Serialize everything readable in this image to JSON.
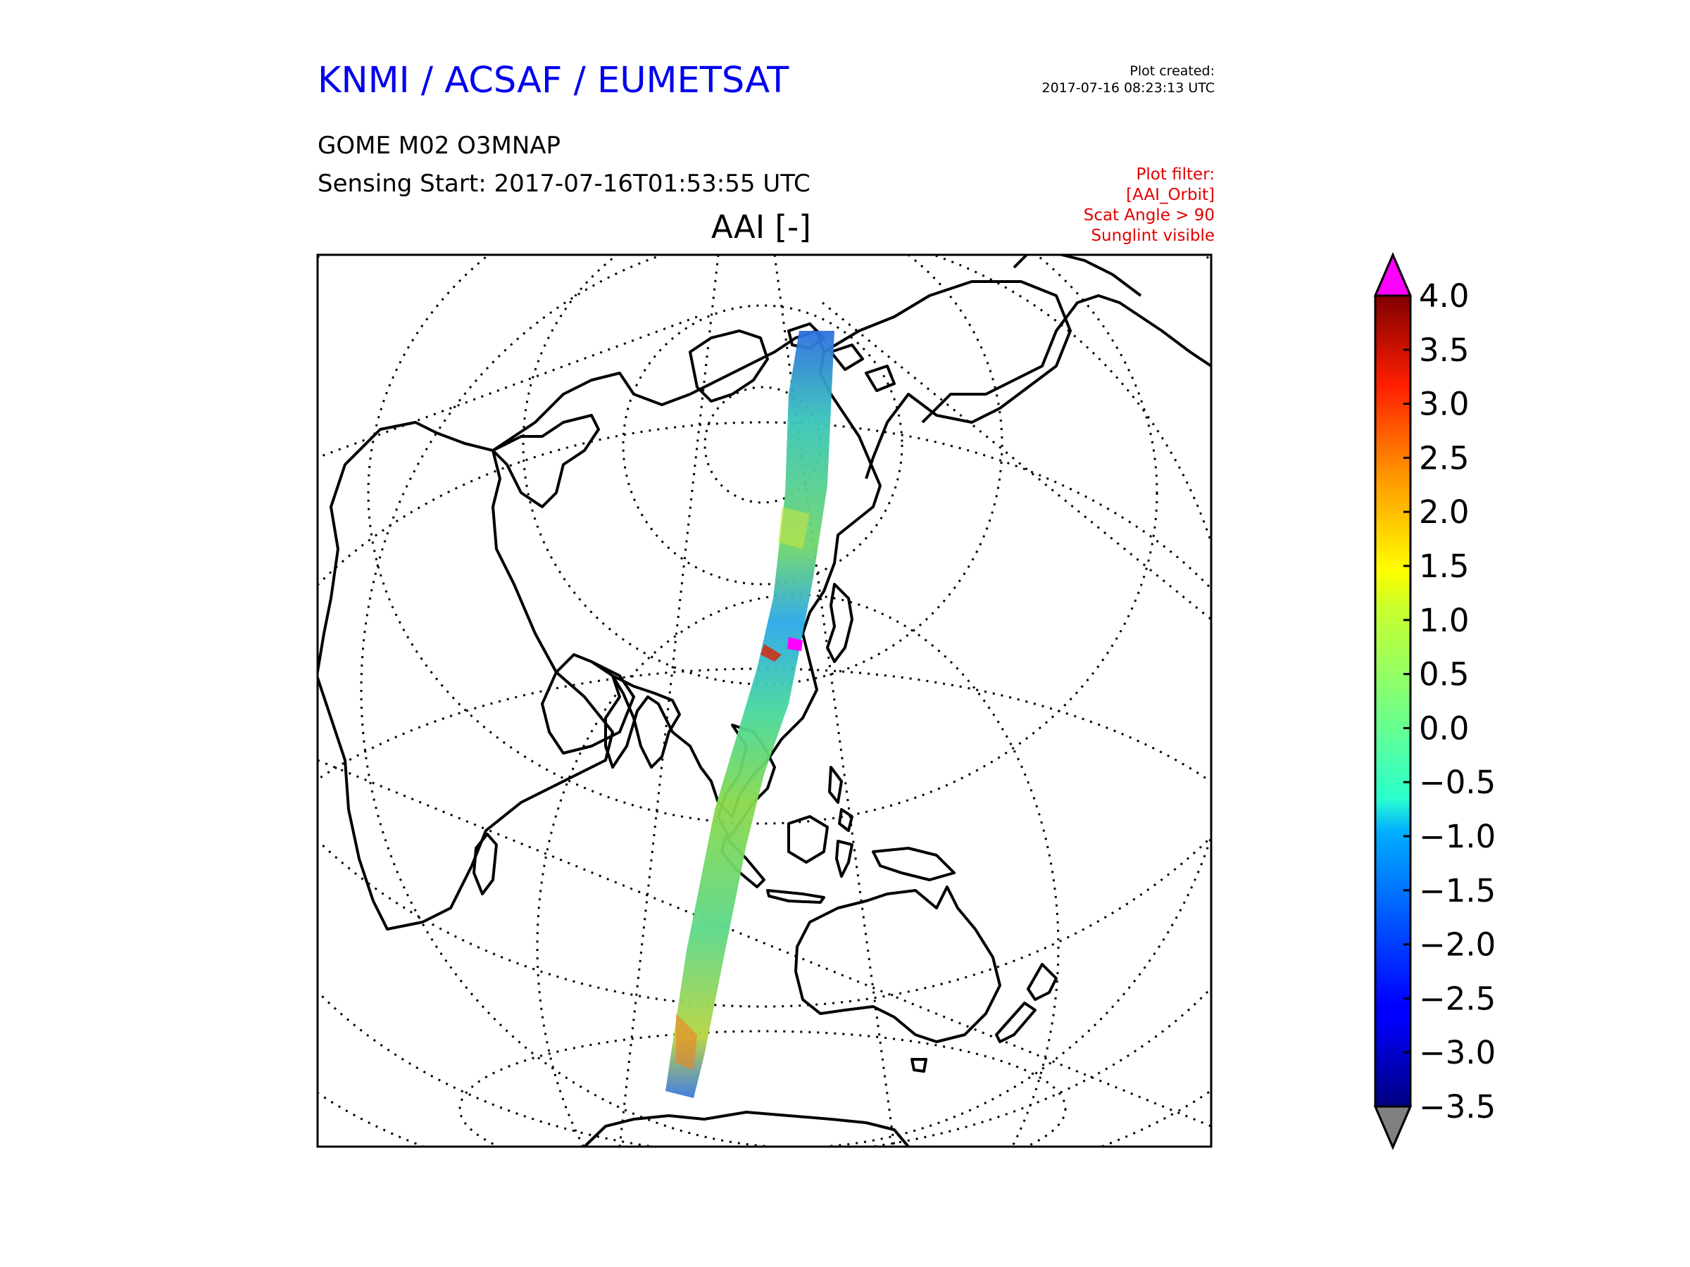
{
  "header": {
    "org": "KNMI / ACSAF / EUMETSAT",
    "created_label": "Plot created:",
    "created_value": "2017-07-16 08:23:13 UTC",
    "product": "GOME M02 O3MNAP",
    "sensing": "Sensing Start: 2017-07-16T01:53:55 UTC",
    "filter_lines": [
      "Plot filter:",
      "[AAI_Orbit]",
      "Scat Angle > 90",
      "Sunglint visible"
    ]
  },
  "colors": {
    "title_blue": "#0000ee",
    "filter_red": "#e00000",
    "over_color": "#ff00ff",
    "under_color": "#808080"
  },
  "chart_data": {
    "type": "heatmap",
    "title": "AAI [-]",
    "projection": "orthographic-like globe view, Asia / Indian Ocean / Australia",
    "variable": "Absorbing Aerosol Index (AAI)",
    "colorbar": {
      "min": -3.5,
      "max": 4.0,
      "colormap": "jet",
      "extend": "both",
      "ticks": [
        4.0,
        3.5,
        3.0,
        2.5,
        2.0,
        1.5,
        1.0,
        0.5,
        0.0,
        -0.5,
        -1.0,
        -1.5,
        -2.0,
        -2.5,
        -3.0,
        -3.5
      ],
      "tick_labels": [
        "4.0",
        "3.5",
        "3.0",
        "2.5",
        "2.0",
        "1.5",
        "1.0",
        "0.5",
        "0.0",
        "−0.5",
        "−1.0",
        "−1.5",
        "−2.0",
        "−2.5",
        "−3.0",
        "−3.5"
      ]
    },
    "swath": {
      "description": "single GOME-2 orbit swath from Arctic / Siberia south through East China, Indochina, Indonesia into the southern Indian Ocean",
      "typical_values": [
        -1.5,
        0.5
      ],
      "hotspots": [
        {
          "region": "eastern China",
          "value": 4.0
        },
        {
          "region": "southern Indian Ocean",
          "value": 2.5
        }
      ]
    }
  }
}
